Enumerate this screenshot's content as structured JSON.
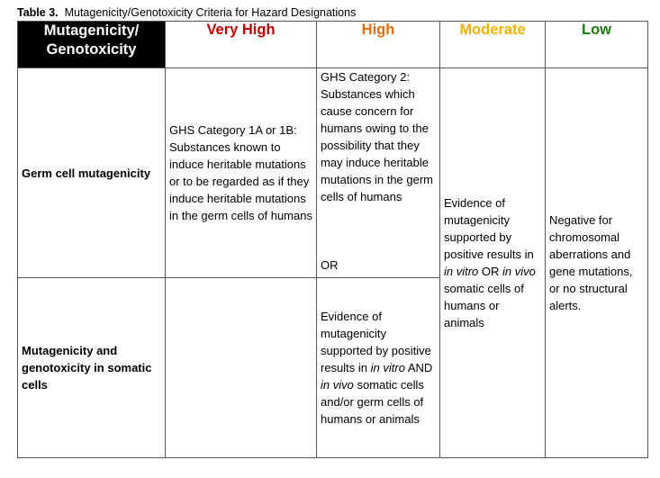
{
  "caption": {
    "label": "Table 3.",
    "text": "Mutagenicity/Genotoxicity Criteria for Hazard Designations"
  },
  "header": {
    "corner_line1": "Mutagenicity/",
    "corner_line2": "Genotoxicity",
    "very_high": "Very High",
    "high": "High",
    "moderate": "Moderate",
    "low": "Low"
  },
  "colors": {
    "very_high": "#c00000",
    "high": "#e46c0a",
    "moderate": "#f2b200",
    "low": "#1d7a12",
    "corner_bg": "#000000"
  },
  "rows": {
    "germ_label": "Germ cell mutagenicity",
    "somatic_label": "Mutagenicity and genotoxicity in somatic cells"
  },
  "cells": {
    "very_high_germ": "GHS Category 1A or 1B: Substances known to induce heritable mutations or to be regarded as if they induce heritable mutations in the germ cells of humans",
    "high_germ": "GHS Category 2: Substances which cause concern for humans owing to the possibility that they may induce heritable mutations in the germ cells of humans",
    "high_or": "OR",
    "high_somatic": {
      "p1": "Evidence of mutagenicity supported by positive results in ",
      "i1": "in vitro",
      "p2": " AND ",
      "i2": "in vivo",
      "p3": " somatic cells and/or germ cells of humans or animals"
    },
    "moderate": {
      "p1": "Evidence of mutagenicity supported by positive results in ",
      "i1": "in vitro",
      "p2": " OR ",
      "i2": "in vivo",
      "p3": " somatic cells of humans or animals"
    },
    "low": "Negative for chromosomal aberrations and gene mutations, or no structural alerts."
  }
}
